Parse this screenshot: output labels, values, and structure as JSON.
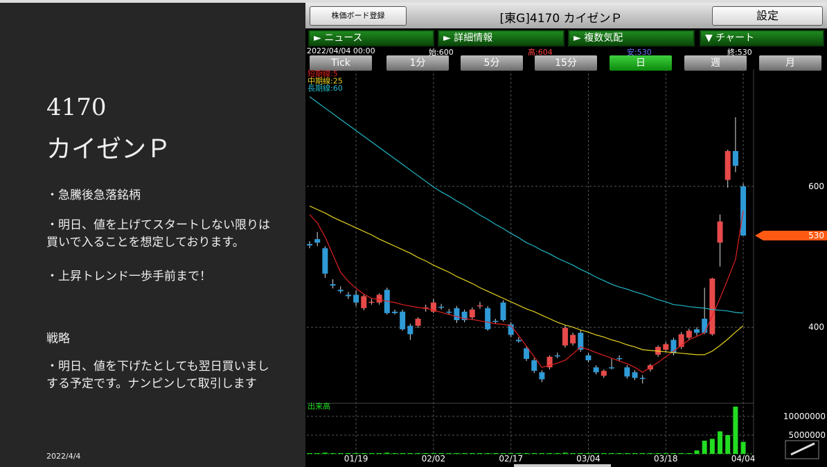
{
  "slide": {
    "code": "4170",
    "name": "カイゼンＰ",
    "points": [
      "・急騰後急落銘柄",
      "・明日、値を上げてスタートしない限りは買いで入ることを想定しております。",
      "・上昇トレンド一歩手前まで！"
    ],
    "strategy_heading": "戦略",
    "strategy_points": [
      "・明日、値を下げたとしても翌日買いましする予定です。ナンピンして取引します"
    ],
    "date": "2022/4/4"
  },
  "app": {
    "board_button": "株価ボード登録",
    "stock_title": "[東G]4170 カイゼンＰ",
    "settings_button": "設定",
    "tabs": [
      "► ニュース",
      "► 詳細情報",
      "► 複数気配",
      "▼ チャート"
    ],
    "info": {
      "datetime": "2022/04/04 00:00",
      "open": "始:600",
      "high": "高:604",
      "low": "安:530",
      "close": "終:530"
    },
    "periods": [
      "Tick",
      "1分",
      "5分",
      "15分",
      "日",
      "週",
      "月"
    ],
    "selected_period": 4
  },
  "chart_data": {
    "type": "candlestick",
    "x": [
      null,
      null,
      null,
      null,
      null,
      null,
      "01/19",
      null,
      null,
      null,
      null,
      null,
      null,
      null,
      null,
      null,
      "02/02",
      null,
      null,
      null,
      null,
      null,
      null,
      null,
      null,
      null,
      "02/17",
      null,
      null,
      null,
      null,
      null,
      null,
      null,
      null,
      null,
      "03/04",
      null,
      null,
      null,
      null,
      null,
      null,
      null,
      null,
      null,
      "03/18",
      null,
      null,
      null,
      null,
      null,
      null,
      null,
      null,
      null,
      "04/04"
    ],
    "open": [
      518,
      525,
      512,
      461,
      453,
      446,
      446,
      427,
      436,
      435,
      453,
      422,
      422,
      402,
      402,
      426,
      422,
      429,
      422,
      427,
      422,
      414,
      430,
      427,
      409,
      435,
      404,
      382,
      370,
      353,
      336,
      343,
      360,
      374,
      377,
      392,
      360,
      343,
      331,
      343,
      356,
      343,
      336,
      328,
      340,
      361,
      368,
      382,
      372,
      385,
      397,
      412,
      390,
      520,
      609,
      650,
      600
    ],
    "high": [
      522,
      535,
      515,
      468,
      458,
      450,
      452,
      446,
      440,
      448,
      456,
      425,
      425,
      405,
      414,
      432,
      440,
      433,
      426,
      430,
      425,
      428,
      436,
      430,
      412,
      438,
      407,
      386,
      373,
      356,
      339,
      360,
      364,
      402,
      392,
      396,
      363,
      346,
      340,
      355,
      360,
      346,
      339,
      332,
      348,
      374,
      379,
      385,
      393,
      398,
      400,
      456,
      470,
      560,
      652,
      698,
      604
    ],
    "low": [
      512,
      515,
      470,
      455,
      448,
      440,
      430,
      424,
      432,
      432,
      418,
      418,
      395,
      382,
      399,
      422,
      420,
      425,
      418,
      406,
      407,
      411,
      426,
      395,
      405,
      408,
      386,
      378,
      352,
      335,
      322,
      340,
      356,
      371,
      374,
      365,
      350,
      333,
      328,
      340,
      352,
      327,
      325,
      320,
      337,
      358,
      365,
      360,
      369,
      382,
      388,
      390,
      388,
      486,
      598,
      620,
      530
    ],
    "close": [
      516,
      520,
      476,
      459,
      451,
      444,
      435,
      444,
      436,
      446,
      420,
      420,
      397,
      390,
      412,
      428,
      435,
      428,
      421,
      410,
      410,
      425,
      431,
      397,
      408,
      410,
      389,
      380,
      355,
      338,
      326,
      358,
      359,
      399,
      389,
      368,
      353,
      336,
      338,
      342,
      355,
      330,
      328,
      327,
      346,
      372,
      376,
      363,
      390,
      395,
      392,
      392,
      469,
      550,
      650,
      629,
      530
    ],
    "up_color": "#e84a4a",
    "down_color": "#2f9ad6",
    "ylim": [
      294,
      766
    ],
    "yticks": [
      400,
      600
    ],
    "current_price": 530,
    "current_color": "#ff5a14",
    "grid": true,
    "series": [
      {
        "name": "短期線:5",
        "color": "#e02020",
        "values": [
          560,
          548,
          528,
          503,
          478,
          465,
          455,
          447,
          441,
          439,
          437,
          435,
          432,
          430,
          428,
          427,
          424,
          421,
          418,
          415,
          412,
          411,
          409,
          407,
          405,
          404,
          402,
          388,
          373,
          358,
          343,
          346,
          349,
          353,
          362,
          372,
          368,
          364,
          360,
          356,
          352,
          348,
          343,
          336,
          343,
          350,
          358,
          366,
          374,
          382,
          387,
          392,
          416,
          441,
          468,
          496,
          565
        ]
      },
      {
        "name": "中期線:25",
        "color": "#e6d21e",
        "values": [
          572,
          567,
          562,
          556,
          551,
          546,
          541,
          536,
          531,
          525,
          520,
          515,
          510,
          505,
          499,
          494,
          488,
          483,
          478,
          472,
          467,
          462,
          456,
          451,
          446,
          441,
          436,
          431,
          426,
          422,
          417,
          412,
          407,
          403,
          400,
          396,
          393,
          389,
          386,
          382,
          379,
          375,
          372,
          368,
          367,
          366,
          365,
          364,
          363,
          362,
          361,
          361,
          366,
          374,
          383,
          393,
          402
        ]
      },
      {
        "name": "長期線:60",
        "color": "#20b8c8",
        "values": [
          727,
          719,
          711,
          703,
          695,
          687,
          679,
          671,
          663,
          655,
          647,
          639,
          631,
          623,
          615,
          607,
          599,
          592,
          586,
          579,
          573,
          566,
          559,
          553,
          546,
          540,
          533,
          527,
          520,
          515,
          509,
          504,
          498,
          493,
          488,
          482,
          477,
          471,
          466,
          461,
          457,
          454,
          450,
          447,
          443,
          439,
          436,
          432,
          431,
          429,
          428,
          427,
          425,
          424,
          423,
          421,
          420
        ]
      }
    ],
    "volume": {
      "label": "出来高",
      "color": "#22dd22",
      "values": [
        200000,
        200000,
        300000,
        200000,
        200000,
        200000,
        200000,
        200000,
        200000,
        200000,
        300000,
        200000,
        200000,
        200000,
        200000,
        200000,
        200000,
        200000,
        200000,
        200000,
        200000,
        200000,
        200000,
        200000,
        200000,
        200000,
        200000,
        200000,
        200000,
        200000,
        200000,
        200000,
        200000,
        300000,
        200000,
        200000,
        200000,
        200000,
        200000,
        200000,
        200000,
        200000,
        200000,
        200000,
        200000,
        200000,
        200000,
        200000,
        200000,
        200000,
        900000,
        3500000,
        4000000,
        6000000,
        5000000,
        12600000,
        3200000
      ],
      "ylim": [
        0,
        13500000
      ],
      "yticks": [
        5000000,
        10000000
      ]
    }
  }
}
